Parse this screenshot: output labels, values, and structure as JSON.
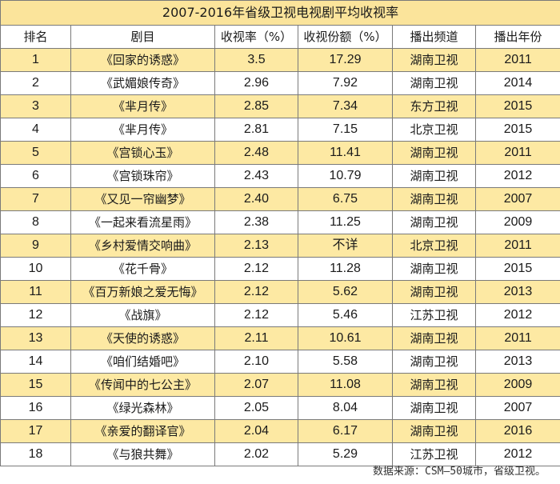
{
  "title": "2007-2016年省级卫视电视剧平均收视率",
  "headers": [
    "排名",
    "剧目",
    "收视率（%）",
    "收视份额（%）",
    "播出频道",
    "播出年份"
  ],
  "rows": [
    {
      "rank": "1",
      "drama": "《回家的诱惑》",
      "rating": "3.5",
      "share": "17.29",
      "channel": "湖南卫视",
      "year": "2011"
    },
    {
      "rank": "2",
      "drama": "《武媚娘传奇》",
      "rating": "2.96",
      "share": "7.92",
      "channel": "湖南卫视",
      "year": "2014"
    },
    {
      "rank": "3",
      "drama": "《芈月传》",
      "rating": "2.85",
      "share": "7.34",
      "channel": "东方卫视",
      "year": "2015"
    },
    {
      "rank": "4",
      "drama": "《芈月传》",
      "rating": "2.81",
      "share": "7.15",
      "channel": "北京卫视",
      "year": "2015"
    },
    {
      "rank": "5",
      "drama": "《宫锁心玉》",
      "rating": "2.48",
      "share": "11.41",
      "channel": "湖南卫视",
      "year": "2011"
    },
    {
      "rank": "6",
      "drama": "《宫锁珠帘》",
      "rating": "2.43",
      "share": "10.79",
      "channel": "湖南卫视",
      "year": "2012"
    },
    {
      "rank": "7",
      "drama": "《又见一帘幽梦》",
      "rating": "2.40",
      "share": "6.75",
      "channel": "湖南卫视",
      "year": "2007"
    },
    {
      "rank": "8",
      "drama": "《一起来看流星雨》",
      "rating": "2.38",
      "share": "11.25",
      "channel": "湖南卫视",
      "year": "2009"
    },
    {
      "rank": "9",
      "drama": "《乡村爱情交响曲》",
      "rating": "2.13",
      "share": "不详",
      "channel": "北京卫视",
      "year": "2011"
    },
    {
      "rank": "10",
      "drama": "《花千骨》",
      "rating": "2.12",
      "share": "11.28",
      "channel": "湖南卫视",
      "year": "2015"
    },
    {
      "rank": "11",
      "drama": "《百万新娘之爱无悔》",
      "rating": "2.12",
      "share": "5.62",
      "channel": "湖南卫视",
      "year": "2013"
    },
    {
      "rank": "12",
      "drama": "《战旗》",
      "rating": "2.12",
      "share": "5.46",
      "channel": "江苏卫视",
      "year": "2012"
    },
    {
      "rank": "13",
      "drama": "《天使的诱惑》",
      "rating": "2.11",
      "share": "10.61",
      "channel": "湖南卫视",
      "year": "2011"
    },
    {
      "rank": "14",
      "drama": "《咱们结婚吧》",
      "rating": "2.10",
      "share": "5.58",
      "channel": "湖南卫视",
      "year": "2013"
    },
    {
      "rank": "15",
      "drama": "《传闻中的七公主》",
      "rating": "2.07",
      "share": "11.08",
      "channel": "湖南卫视",
      "year": "2009"
    },
    {
      "rank": "16",
      "drama": "《绿光森林》",
      "rating": "2.05",
      "share": "8.04",
      "channel": "湖南卫视",
      "year": "2007"
    },
    {
      "rank": "17",
      "drama": "《亲爱的翻译官》",
      "rating": "2.04",
      "share": "6.17",
      "channel": "湖南卫视",
      "year": "2016"
    },
    {
      "rank": "18",
      "drama": "《与狼共舞》",
      "rating": "2.02",
      "share": "5.29",
      "channel": "江苏卫视",
      "year": "2012"
    }
  ],
  "source": "数据来源：CSM—50城市，省级卫视。",
  "colors": {
    "band": "#fde9a3",
    "title_bg": "#fbe49b",
    "border": "#7a7a7a"
  }
}
